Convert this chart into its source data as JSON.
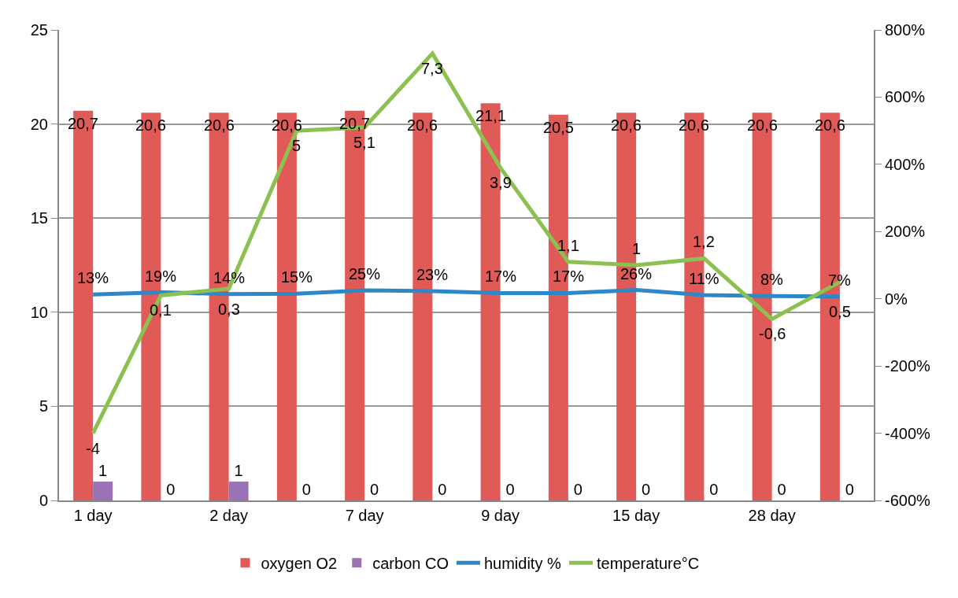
{
  "chart_data": {
    "type": "bar",
    "categories": [
      "1 day",
      null,
      "2 day",
      null,
      "7 day",
      null,
      "9 day",
      null,
      "15 day",
      null,
      "28 day",
      null
    ],
    "series": [
      {
        "name": "oxygen O2",
        "color": "#e05a57",
        "values": [
          20.7,
          20.6,
          20.6,
          20.6,
          20.7,
          20.6,
          21.1,
          20.5,
          20.6,
          20.6,
          20.6,
          20.6
        ],
        "value_labels": [
          "20,7",
          "20,6",
          "20,6",
          "20,6",
          "20,7",
          "20,6",
          "21,1",
          "20,5",
          "20,6",
          "20,6",
          "20,6",
          "20,6"
        ]
      },
      {
        "name": "carbon CO",
        "color": "#9a73b4",
        "values": [
          1,
          0,
          1,
          0,
          0,
          0,
          0,
          0,
          0,
          0,
          0,
          0
        ],
        "value_labels": [
          "1",
          "0",
          "1",
          "0",
          "0",
          "0",
          "0",
          "0",
          "0",
          "0",
          "0",
          "0"
        ]
      },
      {
        "name": "humidity %",
        "type": "line",
        "axis": "y2",
        "color": "#2e88c8",
        "values": [
          0.13,
          0.19,
          0.14,
          0.15,
          0.25,
          0.23,
          0.17,
          0.17,
          0.26,
          0.11,
          0.08,
          0.07
        ],
        "value_labels": [
          "13%",
          "19%",
          "14%",
          "15%",
          "25%",
          "23%",
          "17%",
          "17%",
          "26%",
          "11%",
          "8%",
          "7%"
        ]
      },
      {
        "name": "temperature°C",
        "type": "line",
        "axis": "y2",
        "color": "#8cc152",
        "values": [
          -4,
          0.1,
          0.3,
          5,
          5.1,
          7.3,
          3.9,
          1.1,
          1,
          1.2,
          -0.6,
          0.5
        ],
        "value_labels": [
          "-4",
          "0,1",
          "0,3",
          "5",
          "5,1",
          "7,3",
          "3,9",
          "1,1",
          "1",
          "1,2",
          "-0,6",
          "0,5"
        ]
      }
    ],
    "ylim": [
      0,
      25
    ],
    "yticks": [
      0,
      5,
      10,
      15,
      20,
      25
    ],
    "y2lim": [
      -6,
      8
    ],
    "y2ticks": [
      {
        "value": -6,
        "label": "-600%"
      },
      {
        "value": -4,
        "label": "-400%"
      },
      {
        "value": -2,
        "label": "-200%"
      },
      {
        "value": 0,
        "label": "0%"
      },
      {
        "value": 2,
        "label": "200%"
      },
      {
        "value": 4,
        "label": "400%"
      },
      {
        "value": 6,
        "label": "600%"
      },
      {
        "value": 8,
        "label": "800%"
      }
    ],
    "grid": "y",
    "legend": "bottom",
    "marker": "none",
    "line_style": "solid"
  }
}
